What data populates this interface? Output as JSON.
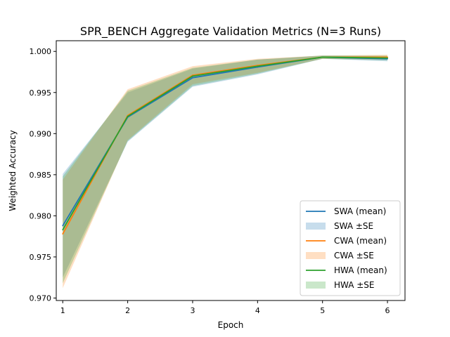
{
  "chart_data": {
    "type": "line",
    "title": "SPR_BENCH Aggregate Validation Metrics (N=3 Runs)",
    "xlabel": "Epoch",
    "ylabel": "Weighted Accuracy",
    "x": [
      1,
      2,
      3,
      4,
      5,
      6
    ],
    "xlim": [
      0.9,
      6.27
    ],
    "ylim": [
      0.9697,
      1.0013
    ],
    "xticks": [
      "1",
      "2",
      "3",
      "4",
      "5",
      "6"
    ],
    "yticks": [
      "0.970",
      "0.975",
      "0.980",
      "0.985",
      "0.990",
      "0.995",
      "1.000"
    ],
    "grid": false,
    "legend_position": "lower-right",
    "series": [
      {
        "name": "SWA (mean)",
        "band_name": "SWA ±SE",
        "color": "#1f77b4",
        "values": [
          0.9788,
          0.992,
          0.9968,
          0.9981,
          0.9993,
          0.9991
        ],
        "lower": [
          0.9725,
          0.989,
          0.9957,
          0.9972,
          0.9991,
          0.9988
        ],
        "upper": [
          0.9851,
          0.995,
          0.9979,
          0.999,
          0.9995,
          0.9994
        ]
      },
      {
        "name": "CWA (mean)",
        "band_name": "CWA ±SE",
        "color": "#ff7f0e",
        "values": [
          0.9778,
          0.9922,
          0.9971,
          0.9983,
          0.9993,
          0.9993
        ],
        "lower": [
          0.9712,
          0.9892,
          0.996,
          0.9974,
          0.9991,
          0.999
        ],
        "upper": [
          0.9844,
          0.9954,
          0.9982,
          0.9991,
          0.9995,
          0.9996
        ]
      },
      {
        "name": "HWA (mean)",
        "band_name": "HWA ±SE",
        "color": "#2ca02c",
        "values": [
          0.9783,
          0.9921,
          0.997,
          0.9982,
          0.9993,
          0.9992
        ],
        "lower": [
          0.9718,
          0.9891,
          0.9958,
          0.9973,
          0.9991,
          0.9989
        ],
        "upper": [
          0.9848,
          0.9952,
          0.998,
          0.999,
          0.9995,
          0.9995
        ]
      }
    ]
  }
}
